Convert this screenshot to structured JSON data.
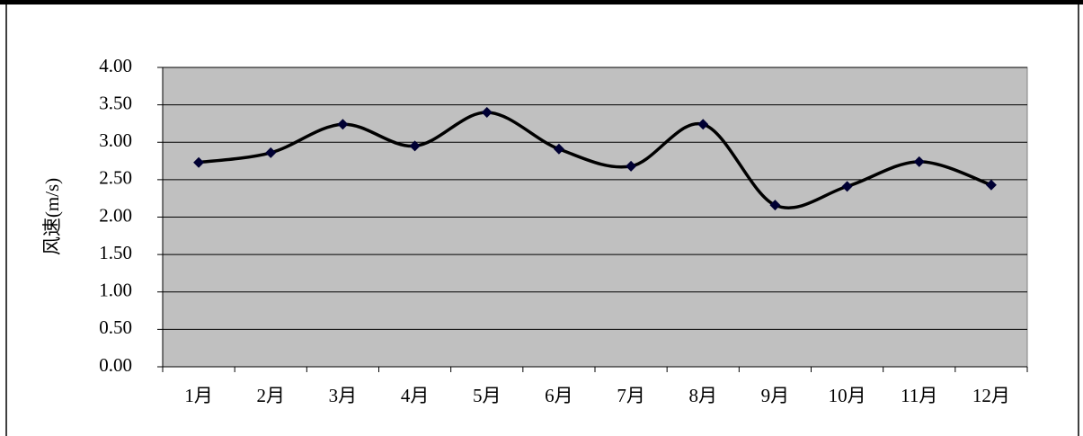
{
  "chart_data": {
    "type": "line",
    "y_label": "风速(m/s)",
    "categories": [
      "1月",
      "2月",
      "3月",
      "4月",
      "5月",
      "6月",
      "7月",
      "8月",
      "9月",
      "10月",
      "11月",
      "12月"
    ],
    "series": [
      {
        "color": "#000000",
        "marker_color": "#000033",
        "values": [
          2.73,
          2.86,
          3.24,
          2.95,
          3.4,
          2.91,
          2.68,
          3.24,
          2.16,
          2.41,
          2.74,
          2.43
        ]
      }
    ],
    "ylim": [
      0,
      4
    ],
    "yticks": [
      {
        "value": 0,
        "label": "0.00"
      },
      {
        "value": 0.5,
        "label": "0.50"
      },
      {
        "value": 1,
        "label": "1.00"
      },
      {
        "value": 1.5,
        "label": "1.50"
      },
      {
        "value": 2,
        "label": "2.00"
      },
      {
        "value": 2.5,
        "label": "2.50"
      },
      {
        "value": 3,
        "label": "3.00"
      },
      {
        "value": 3.5,
        "label": "3.50"
      },
      {
        "value": 4,
        "label": "4.00"
      }
    ],
    "grid": true,
    "smooth": true,
    "plot_background": "#c0c0c0"
  }
}
